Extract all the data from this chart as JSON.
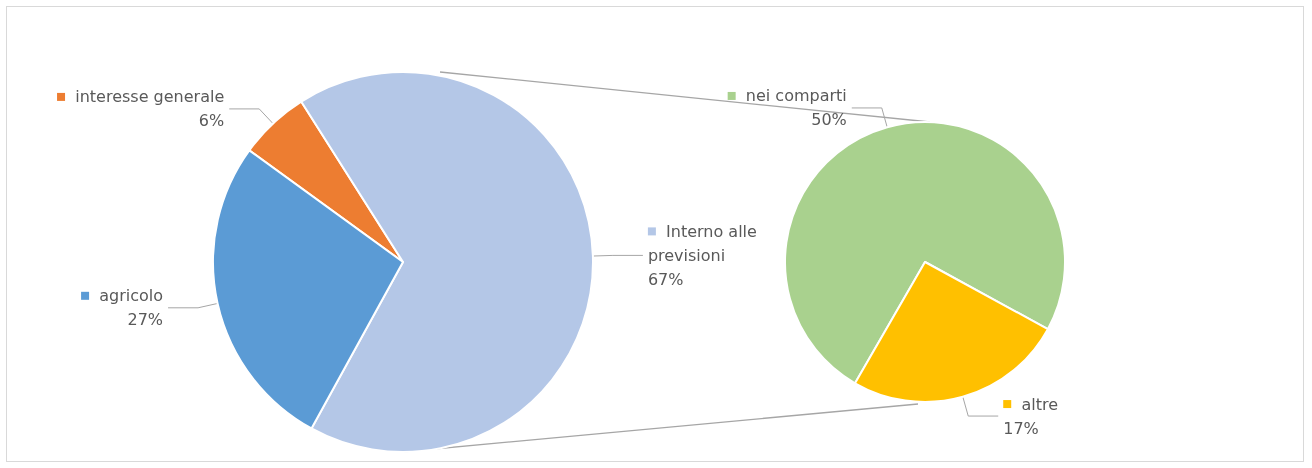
{
  "chart_data": [
    {
      "type": "pie",
      "categories": [
        "interesse generale",
        "Interno alle previsioni",
        "agricolo"
      ],
      "values": [
        6,
        67,
        27
      ],
      "value_labels": [
        "6%",
        "67%",
        "27%"
      ],
      "colors": [
        "#ed7d31",
        "#b4c7e7",
        "#5b9bd5"
      ],
      "legend": "left"
    },
    {
      "type": "pie",
      "categories": [
        "nei comparti",
        "altre"
      ],
      "values": [
        50,
        17
      ],
      "value_labels": [
        "50%",
        "17%"
      ],
      "colors": [
        "#a9d18e",
        "#ffc000"
      ],
      "legend": "top left"
    }
  ]
}
